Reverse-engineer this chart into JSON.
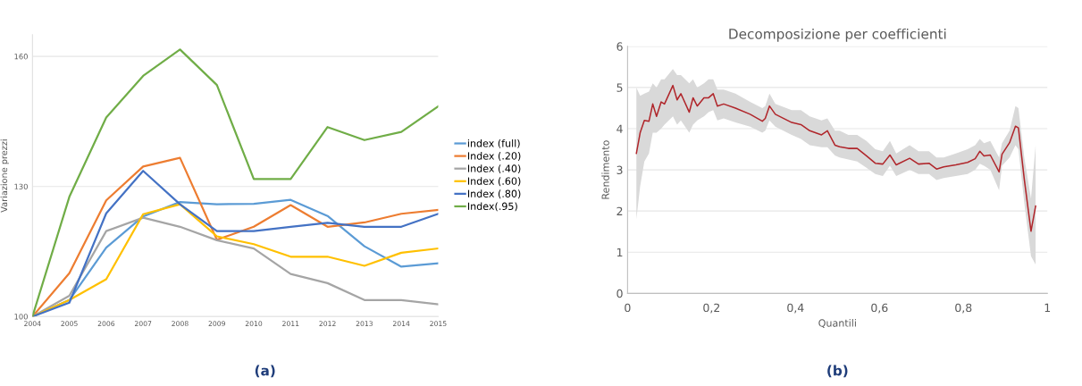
{
  "chart_data": [
    {
      "type": "line",
      "ylabel": "Variazione prezzi",
      "annotations": [
        "(a)"
      ],
      "categories": [
        "2004",
        "2005",
        "2006",
        "2007",
        "2008",
        "2009",
        "2010",
        "2011",
        "2012",
        "2013",
        "2014",
        "2015"
      ],
      "ylim": [
        100,
        165
      ],
      "yticks": [
        100,
        130,
        160
      ],
      "grid": "y",
      "legend": "right",
      "marker": "none",
      "line_style": "solid",
      "series": [
        {
          "name": "index (full)",
          "color": "#5b9bd5",
          "values": [
            100,
            103.8,
            115.9,
            123.1,
            126.4,
            125.9,
            126,
            126.9,
            123.2,
            116.2,
            111.5,
            112.3
          ]
        },
        {
          "name": "Index (.20)",
          "color": "#ed7d31",
          "values": [
            100,
            110,
            126.8,
            134.6,
            136.6,
            117.7,
            120.7,
            125.7,
            120.7,
            121.7,
            123.7,
            124.6
          ]
        },
        {
          "name": "Index (.40)",
          "color": "#a5a5a5",
          "values": [
            100,
            104.8,
            119.7,
            122.8,
            120.7,
            117.6,
            115.7,
            109.8,
            107.7,
            103.8,
            103.8,
            102.8
          ]
        },
        {
          "name": "Index (.60)",
          "color": "#ffc000",
          "values": [
            100,
            103.8,
            108.6,
            123.6,
            125.9,
            118.5,
            116.7,
            113.8,
            113.8,
            111.7,
            114.7,
            115.7
          ]
        },
        {
          "name": "Index (.80)",
          "color": "#4472c4",
          "values": [
            100,
            103.2,
            123.8,
            133.6,
            125.9,
            119.7,
            119.7,
            120.7,
            121.6,
            120.7,
            120.7,
            123.7
          ]
        },
        {
          "name": "Index(.95)",
          "color": "#70ad47",
          "values": [
            100,
            127.6,
            145.9,
            155.5,
            161.6,
            153.4,
            131.7,
            131.7,
            143.7,
            140.7,
            142.6,
            148.5
          ]
        }
      ]
    },
    {
      "type": "line",
      "title": "Decomposizione per coefficienti",
      "xlabel": "Quantili",
      "ylabel": "Rendimento",
      "annotations": [
        "(b)"
      ],
      "xlim": [
        0,
        1
      ],
      "xticks": [
        0,
        {
          "value": 0.2,
          "label": "0,2"
        },
        {
          "value": 0.4,
          "label": "0,4"
        },
        {
          "value": 0.6,
          "label": "0,6"
        },
        {
          "value": 0.8,
          "label": "0,8"
        },
        1
      ],
      "ylim": [
        0,
        6
      ],
      "yticks": [
        0,
        1,
        2,
        3,
        4,
        5,
        6
      ],
      "grid": "y",
      "marker": "none",
      "line_style": "solid",
      "series": [
        {
          "color": "#b0262b",
          "x": [
            0.021,
            0.03,
            0.04,
            0.051,
            0.06,
            0.069,
            0.08,
            0.088,
            0.108,
            0.118,
            0.127,
            0.147,
            0.156,
            0.166,
            0.182,
            0.193,
            0.204,
            0.214,
            0.229,
            0.257,
            0.292,
            0.321,
            0.328,
            0.338,
            0.352,
            0.391,
            0.413,
            0.434,
            0.462,
            0.476,
            0.494,
            0.505,
            0.526,
            0.547,
            0.569,
            0.59,
            0.608,
            0.625,
            0.64,
            0.672,
            0.693,
            0.718,
            0.736,
            0.753,
            0.782,
            0.81,
            0.828,
            0.839,
            0.849,
            0.864,
            0.885,
            0.892,
            0.91,
            0.924,
            0.931,
            0.945,
            0.961,
            0.972
          ],
          "values": [
            3.4,
            3.9,
            4.2,
            4.18,
            4.6,
            4.3,
            4.65,
            4.6,
            5.05,
            4.7,
            4.85,
            4.4,
            4.75,
            4.55,
            4.75,
            4.75,
            4.85,
            4.55,
            4.6,
            4.5,
            4.35,
            4.18,
            4.25,
            4.55,
            4.35,
            4.15,
            4.1,
            3.95,
            3.85,
            3.95,
            3.6,
            3.56,
            3.52,
            3.52,
            3.34,
            3.16,
            3.14,
            3.36,
            3.12,
            3.28,
            3.14,
            3.16,
            3.02,
            3.07,
            3.12,
            3.18,
            3.27,
            3.45,
            3.34,
            3.36,
            2.95,
            3.38,
            3.66,
            4.06,
            4.02,
            2.77,
            1.51,
            2.12
          ],
          "lower": [
            1.8,
            2.6,
            3.2,
            3.4,
            3.9,
            3.9,
            4.0,
            4.1,
            4.3,
            4.1,
            4.2,
            3.9,
            4.1,
            4.2,
            4.3,
            4.4,
            4.45,
            4.2,
            4.25,
            4.15,
            4.05,
            3.9,
            3.95,
            4.2,
            4.05,
            3.85,
            3.75,
            3.6,
            3.55,
            3.55,
            3.35,
            3.3,
            3.25,
            3.2,
            3.05,
            2.9,
            2.85,
            3.1,
            2.85,
            3.0,
            2.9,
            2.9,
            2.75,
            2.8,
            2.85,
            2.9,
            3.0,
            3.15,
            3.1,
            3.0,
            2.5,
            3.1,
            3.3,
            3.6,
            3.5,
            2.2,
            0.9,
            0.7
          ],
          "upper": [
            5.0,
            4.8,
            4.85,
            4.9,
            5.1,
            5.0,
            5.2,
            5.2,
            5.45,
            5.3,
            5.3,
            5.1,
            5.2,
            5.0,
            5.1,
            5.2,
            5.2,
            4.95,
            4.95,
            4.85,
            4.65,
            4.5,
            4.55,
            4.85,
            4.6,
            4.45,
            4.45,
            4.3,
            4.2,
            4.25,
            3.95,
            3.95,
            3.85,
            3.85,
            3.7,
            3.5,
            3.45,
            3.7,
            3.4,
            3.6,
            3.45,
            3.45,
            3.3,
            3.3,
            3.4,
            3.5,
            3.6,
            3.75,
            3.65,
            3.7,
            3.3,
            3.65,
            3.95,
            4.55,
            4.5,
            3.3,
            2.3,
            3.6
          ]
        }
      ]
    }
  ]
}
